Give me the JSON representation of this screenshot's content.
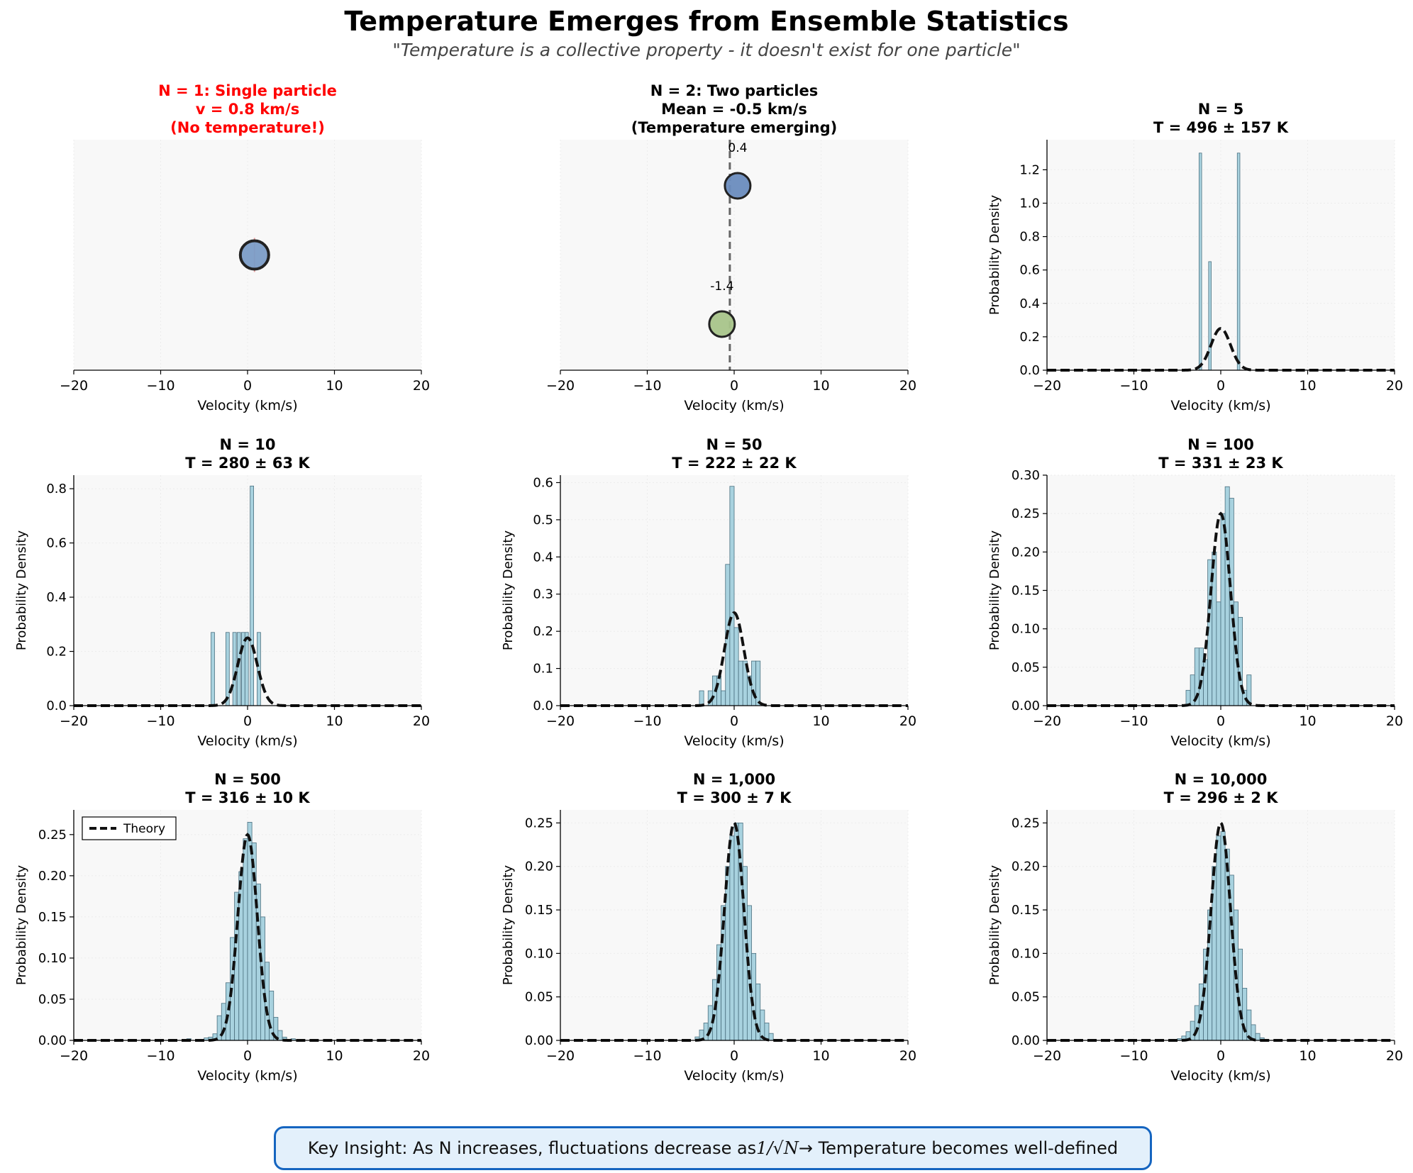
{
  "figure": {
    "title": "Temperature Emerges from Ensemble Statistics",
    "subtitle": "\"Temperature is a collective property - it doesn't exist for one particle\"",
    "key_insight": {
      "before": "Key Insight: As N increases, fluctuations decrease as ",
      "formula": "1/√N",
      "after": " → Temperature becomes well-defined"
    }
  },
  "colors": {
    "hist_fill": "#a8d2df",
    "hist_edge": "#4a6f7f",
    "theory_line": "#111111",
    "panel_bg": "#f8f8f8",
    "particle_single": "#7b9cc6",
    "particle_blue": "#6a8cbe",
    "particle_green": "#a8c48a",
    "alert_title": "#ff0000",
    "box_border": "#1565c0",
    "box_fill": "#e3f0fb"
  },
  "chart_data": [
    {
      "type": "scatter",
      "title_lines": [
        "N = 1: Single particle",
        "v = 0.8 km/s",
        "(No temperature!)"
      ],
      "title_color": "red",
      "xlabel": "Velocity (km/s)",
      "xlim": [
        -20,
        20
      ],
      "x_ticks": [
        -20,
        -10,
        0,
        10,
        20
      ],
      "particles": [
        {
          "v": 0.8,
          "level": 0.5,
          "color": "particle_single",
          "big": true
        }
      ]
    },
    {
      "type": "scatter",
      "title_lines": [
        "N = 2: Two particles",
        "Mean = -0.5 km/s",
        "(Temperature emerging)"
      ],
      "xlabel": "Velocity (km/s)",
      "xlim": [
        -20,
        20
      ],
      "x_ticks": [
        -20,
        -10,
        0,
        10,
        20
      ],
      "mean_line": -0.5,
      "particles": [
        {
          "v": 0.4,
          "level": 0.8,
          "color": "particle_blue",
          "label": "0.4"
        },
        {
          "v": -1.4,
          "level": 0.2,
          "color": "particle_green",
          "label": "-1.4"
        }
      ]
    },
    {
      "type": "bar",
      "title_lines": [
        "N = 5",
        "T = 496 ± 157 K"
      ],
      "xlabel": "Velocity (km/s)",
      "ylabel": "Probability Density",
      "xlim": [
        -20,
        20
      ],
      "ylim": [
        0,
        1.38
      ],
      "x_ticks": [
        -20,
        -10,
        0,
        10,
        20
      ],
      "y_ticks": [
        "0.0",
        "0.2",
        "0.4",
        "0.6",
        "0.8",
        "1.0",
        "1.2"
      ],
      "bins": [
        [
          -2.5,
          -2.2,
          1.3
        ],
        [
          -1.4,
          -1.1,
          0.65
        ],
        [
          1.9,
          2.2,
          1.3
        ]
      ]
    },
    {
      "type": "bar",
      "title_lines": [
        "N = 10",
        "T = 280 ± 63 K"
      ],
      "xlabel": "Velocity (km/s)",
      "ylabel": "Probability Density",
      "xlim": [
        -20,
        20
      ],
      "ylim": [
        0,
        0.85
      ],
      "x_ticks": [
        -20,
        -10,
        0,
        10,
        20
      ],
      "y_ticks": [
        "0.0",
        "0.2",
        "0.4",
        "0.6",
        "0.8"
      ],
      "bins": [
        [
          -4.2,
          -3.8,
          0.27
        ],
        [
          -2.5,
          -2.1,
          0.27
        ],
        [
          -1.7,
          -1.3,
          0.27
        ],
        [
          -1.2,
          -0.8,
          0.27
        ],
        [
          -0.7,
          -0.3,
          0.27
        ],
        [
          -0.3,
          0.1,
          0.27
        ],
        [
          0.3,
          0.7,
          0.81
        ],
        [
          1.1,
          1.5,
          0.27
        ]
      ]
    },
    {
      "type": "bar",
      "title_lines": [
        "N = 50",
        "T = 222 ± 22 K"
      ],
      "xlabel": "Velocity (km/s)",
      "ylabel": "Probability Density",
      "xlim": [
        -20,
        20
      ],
      "ylim": [
        0,
        0.62
      ],
      "x_ticks": [
        -20,
        -10,
        0,
        10,
        20
      ],
      "y_ticks": [
        "0.0",
        "0.1",
        "0.2",
        "0.3",
        "0.4",
        "0.5",
        "0.6"
      ],
      "bins": [
        [
          -4.0,
          -3.5,
          0.04
        ],
        [
          -3.0,
          -2.5,
          0.04
        ],
        [
          -2.5,
          -2.0,
          0.08
        ],
        [
          -2.0,
          -1.5,
          0.08
        ],
        [
          -1.5,
          -1.0,
          0.04
        ],
        [
          -1.0,
          -0.5,
          0.38
        ],
        [
          -0.5,
          0.0,
          0.59
        ],
        [
          0.0,
          0.5,
          0.21
        ],
        [
          0.5,
          1.0,
          0.12
        ],
        [
          1.0,
          1.5,
          0.12
        ],
        [
          1.5,
          2.0,
          0.08
        ],
        [
          2.0,
          2.5,
          0.12
        ],
        [
          2.5,
          3.0,
          0.12
        ]
      ]
    },
    {
      "type": "bar",
      "title_lines": [
        "N = 100",
        "T = 331 ± 23 K"
      ],
      "xlabel": "Velocity (km/s)",
      "ylabel": "Probability Density",
      "xlim": [
        -20,
        20
      ],
      "ylim": [
        0,
        0.3
      ],
      "x_ticks": [
        -20,
        -10,
        0,
        10,
        20
      ],
      "y_ticks": [
        "0.00",
        "0.05",
        "0.10",
        "0.15",
        "0.20",
        "0.25",
        "0.30"
      ],
      "bins": [
        [
          -4.0,
          -3.5,
          0.02
        ],
        [
          -3.5,
          -3.0,
          0.04
        ],
        [
          -3.0,
          -2.5,
          0.075
        ],
        [
          -2.5,
          -2.0,
          0.075
        ],
        [
          -2.0,
          -1.5,
          0.06
        ],
        [
          -1.5,
          -1.0,
          0.19
        ],
        [
          -1.0,
          -0.5,
          0.2
        ],
        [
          -0.5,
          0.0,
          0.135
        ],
        [
          0.0,
          0.5,
          0.25
        ],
        [
          0.5,
          1.0,
          0.285
        ],
        [
          1.0,
          1.5,
          0.27
        ],
        [
          1.5,
          2.0,
          0.135
        ],
        [
          2.0,
          2.5,
          0.115
        ],
        [
          2.5,
          3.0,
          0.02
        ],
        [
          3.0,
          3.5,
          0.04
        ]
      ]
    },
    {
      "type": "bar",
      "title_lines": [
        "N = 500",
        "T = 316 ± 10 K"
      ],
      "xlabel": "Velocity (km/s)",
      "ylabel": "Probability Density",
      "xlim": [
        -20,
        20
      ],
      "ylim": [
        0,
        0.28
      ],
      "x_ticks": [
        -20,
        -10,
        0,
        10,
        20
      ],
      "y_ticks": [
        "0.00",
        "0.05",
        "0.10",
        "0.15",
        "0.20",
        "0.25"
      ],
      "legend": "Theory",
      "bins": [
        [
          -7.0,
          -6.5,
          0.002
        ],
        [
          -5.0,
          -4.5,
          0.003
        ],
        [
          -4.5,
          -4.0,
          0.004
        ],
        [
          -4.0,
          -3.5,
          0.008
        ],
        [
          -3.5,
          -3.0,
          0.03
        ],
        [
          -3.0,
          -2.5,
          0.045
        ],
        [
          -2.5,
          -2.0,
          0.07
        ],
        [
          -2.0,
          -1.5,
          0.125
        ],
        [
          -1.5,
          -1.0,
          0.18
        ],
        [
          -1.0,
          -0.5,
          0.205
        ],
        [
          -0.5,
          0.0,
          0.245
        ],
        [
          0.0,
          0.5,
          0.265
        ],
        [
          0.5,
          1.0,
          0.24
        ],
        [
          1.0,
          1.5,
          0.19
        ],
        [
          1.5,
          2.0,
          0.15
        ],
        [
          2.0,
          2.5,
          0.095
        ],
        [
          2.5,
          3.0,
          0.06
        ],
        [
          3.0,
          3.5,
          0.028
        ],
        [
          3.5,
          4.0,
          0.012
        ],
        [
          4.0,
          4.5,
          0.004
        ],
        [
          5.0,
          5.5,
          0.002
        ]
      ]
    },
    {
      "type": "bar",
      "title_lines": [
        "N = 1,000",
        "T = 300 ± 7 K"
      ],
      "xlabel": "Velocity (km/s)",
      "ylabel": "Probability Density",
      "xlim": [
        -20,
        20
      ],
      "ylim": [
        0,
        0.265
      ],
      "x_ticks": [
        -20,
        -10,
        0,
        10,
        20
      ],
      "y_ticks": [
        "0.00",
        "0.05",
        "0.10",
        "0.15",
        "0.20",
        "0.25"
      ],
      "bins": [
        [
          -4.5,
          -4.0,
          0.004
        ],
        [
          -4.0,
          -3.5,
          0.012
        ],
        [
          -3.5,
          -3.0,
          0.02
        ],
        [
          -3.0,
          -2.5,
          0.04
        ],
        [
          -2.5,
          -2.0,
          0.07
        ],
        [
          -2.0,
          -1.5,
          0.11
        ],
        [
          -1.5,
          -1.0,
          0.155
        ],
        [
          -1.0,
          -0.5,
          0.2
        ],
        [
          -0.5,
          0.0,
          0.235
        ],
        [
          0.0,
          0.5,
          0.25
        ],
        [
          0.5,
          1.0,
          0.25
        ],
        [
          1.0,
          1.5,
          0.2
        ],
        [
          1.5,
          2.0,
          0.155
        ],
        [
          2.0,
          2.5,
          0.1
        ],
        [
          2.5,
          3.0,
          0.065
        ],
        [
          3.0,
          3.5,
          0.035
        ],
        [
          3.5,
          4.0,
          0.02
        ],
        [
          4.0,
          4.5,
          0.008
        ]
      ]
    },
    {
      "type": "bar",
      "title_lines": [
        "N = 10,000",
        "T = 296 ± 2 K"
      ],
      "xlabel": "Velocity (km/s)",
      "ylabel": "Probability Density",
      "xlim": [
        -20,
        20
      ],
      "ylim": [
        0,
        0.265
      ],
      "x_ticks": [
        -20,
        -10,
        0,
        10,
        20
      ],
      "y_ticks": [
        "0.00",
        "0.05",
        "0.10",
        "0.15",
        "0.20",
        "0.25"
      ],
      "bins": [
        [
          -5.0,
          -4.5,
          0.002
        ],
        [
          -4.5,
          -4.0,
          0.005
        ],
        [
          -4.0,
          -3.5,
          0.01
        ],
        [
          -3.5,
          -3.0,
          0.022
        ],
        [
          -3.0,
          -2.5,
          0.04
        ],
        [
          -2.5,
          -2.0,
          0.065
        ],
        [
          -2.0,
          -1.5,
          0.105
        ],
        [
          -1.5,
          -1.0,
          0.15
        ],
        [
          -1.0,
          -0.5,
          0.2
        ],
        [
          -0.5,
          0.0,
          0.235
        ],
        [
          0.0,
          0.5,
          0.24
        ],
        [
          0.5,
          1.0,
          0.22
        ],
        [
          1.0,
          1.5,
          0.19
        ],
        [
          1.5,
          2.0,
          0.15
        ],
        [
          2.0,
          2.5,
          0.105
        ],
        [
          2.5,
          3.0,
          0.06
        ],
        [
          3.0,
          3.5,
          0.035
        ],
        [
          3.5,
          4.0,
          0.018
        ],
        [
          4.0,
          4.5,
          0.008
        ],
        [
          4.5,
          5.0,
          0.003
        ]
      ]
    }
  ]
}
